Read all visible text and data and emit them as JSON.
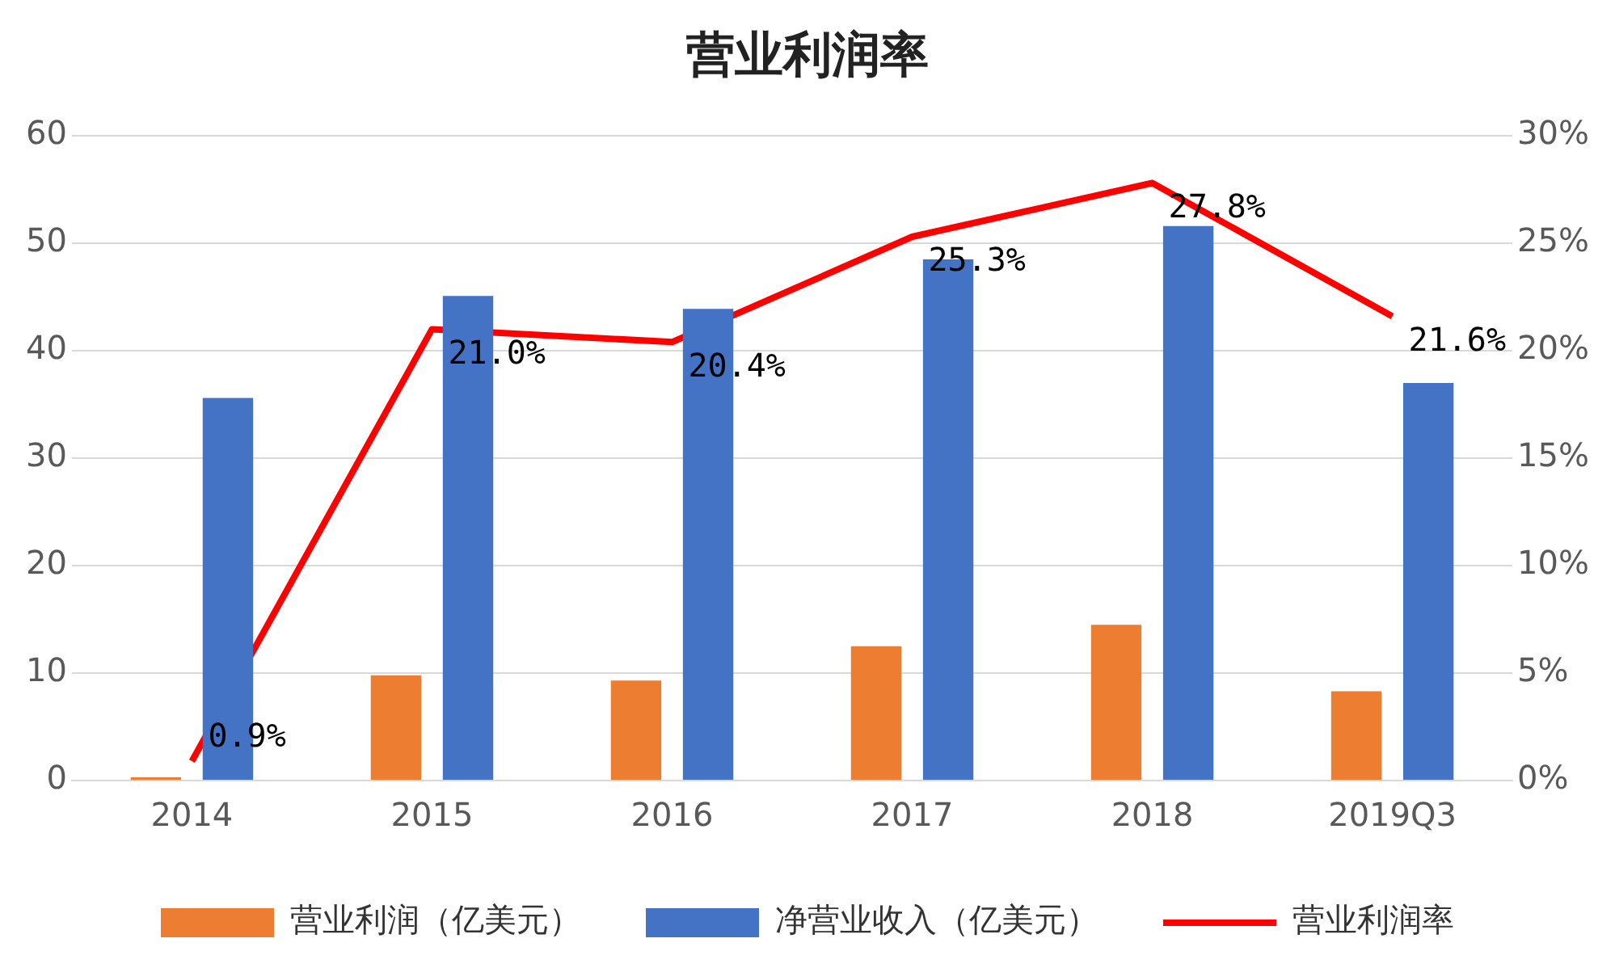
{
  "chart_data": {
    "type": "bar",
    "title": "营业利润率",
    "categories": [
      "2014",
      "2015",
      "2016",
      "2017",
      "2018",
      "2019Q3"
    ],
    "series": [
      {
        "name": "营业利润（亿美元）",
        "color": "#ed7d31",
        "values": [
          0.3,
          9.8,
          9.3,
          12.5,
          14.5,
          8.3
        ]
      },
      {
        "name": "净营业收入（亿美元）",
        "color": "#4472c4",
        "values": [
          35.6,
          45.1,
          43.9,
          48.5,
          51.6,
          37.0
        ]
      },
      {
        "name": "营业利润率",
        "type": "line",
        "axis": "y2",
        "color": "#ff0000",
        "values": [
          0.9,
          21.0,
          20.4,
          25.3,
          27.8,
          21.6
        ],
        "value_labels": [
          "0.9%",
          "21.0%",
          "20.4%",
          "25.3%",
          "27.8%",
          "21.6%"
        ],
        "marker": "none"
      }
    ],
    "ylim": [
      0,
      60
    ],
    "yticks": [
      0,
      10,
      20,
      30,
      40,
      50,
      60
    ],
    "y2lim": [
      0,
      30
    ],
    "y2ticks": [
      {
        "value": 0,
        "label": "0%"
      },
      {
        "value": 5,
        "label": "5%"
      },
      {
        "value": 10,
        "label": "10%"
      },
      {
        "value": 15,
        "label": "15%"
      },
      {
        "value": 20,
        "label": "20%"
      },
      {
        "value": 25,
        "label": "25%"
      },
      {
        "value": 30,
        "label": "30%"
      }
    ],
    "grid": "y",
    "legend": "bottom"
  }
}
